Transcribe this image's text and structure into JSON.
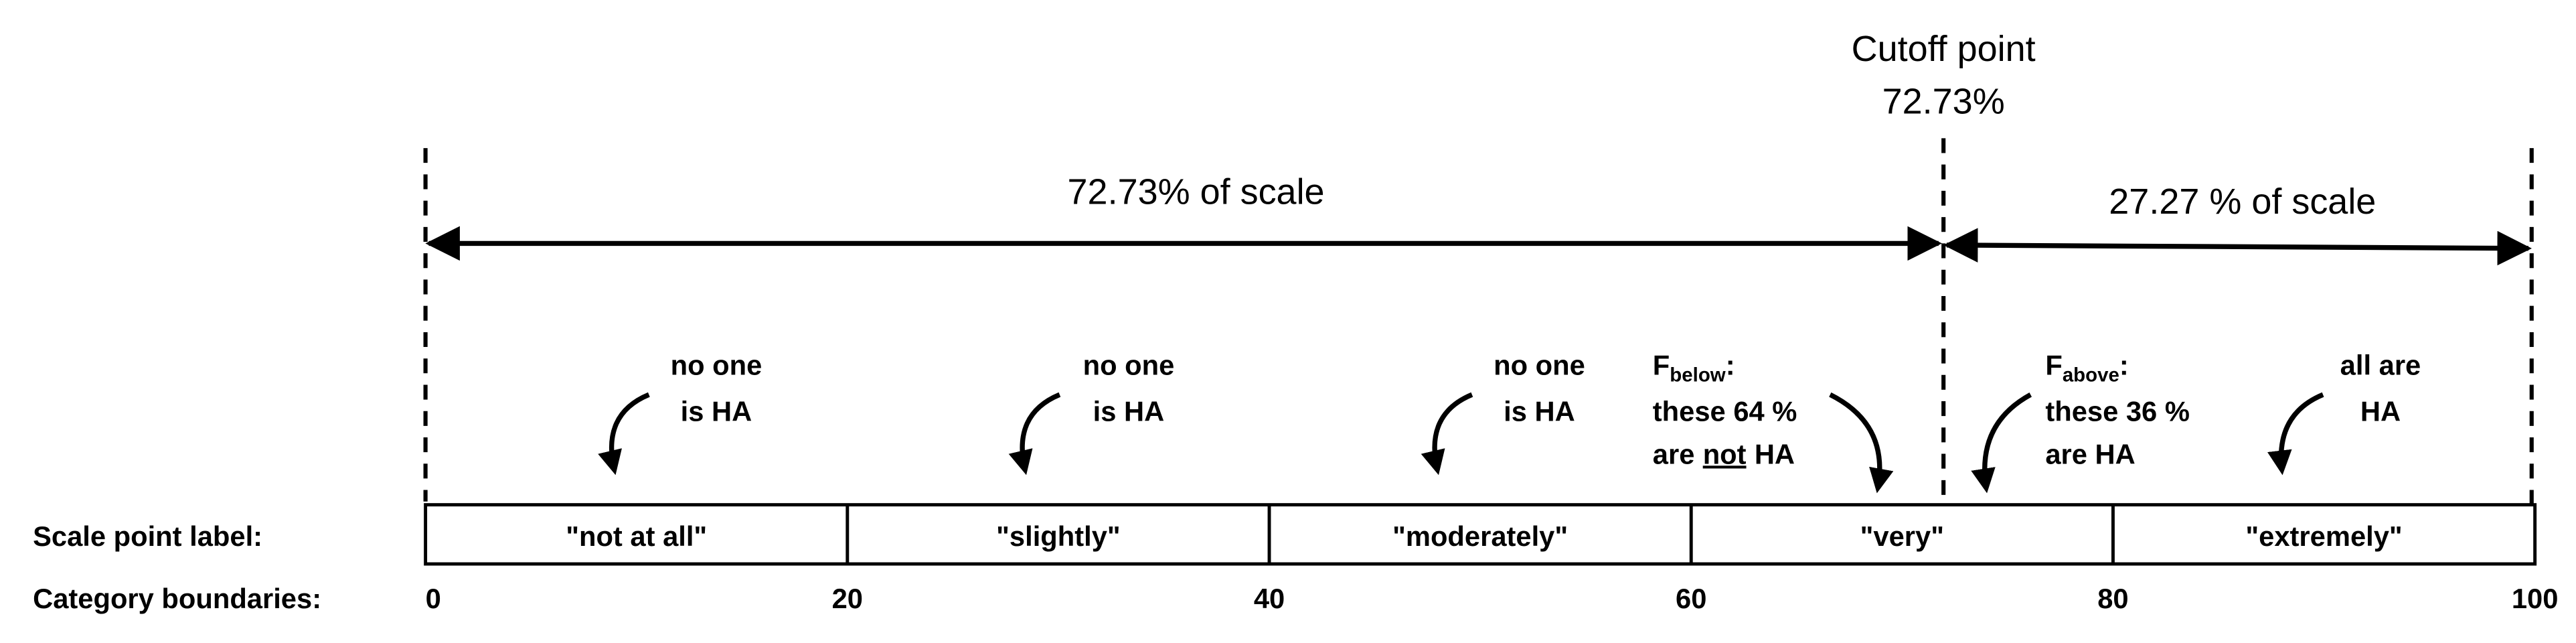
{
  "header": {
    "cutoff_title": "Cutoff point",
    "cutoff_value": "72.73%"
  },
  "spans": [
    {
      "label": "72.73% of scale"
    },
    {
      "label": "27.27 % of scale"
    }
  ],
  "annotations": [
    {
      "lines": [
        "no one",
        "is HA"
      ]
    },
    {
      "lines": [
        "no one",
        "is HA"
      ]
    },
    {
      "lines": [
        "no one",
        "is HA"
      ]
    },
    {
      "lines": [
        "all are",
        "HA"
      ]
    }
  ],
  "f_below": {
    "symbol": "F",
    "subscript": "below",
    "colon": ":",
    "line2": "these 64 %",
    "line3_pre": "are",
    "line3_emph": "not",
    "line3_post": "HA"
  },
  "f_above": {
    "symbol": "F",
    "subscript": "above",
    "colon": ":",
    "line2": "these 36 %",
    "line3": "are HA"
  },
  "row_labels": [
    "Scale point label:",
    "Category boundaries:"
  ],
  "categories": [
    "\"not at all\"",
    "\"slightly\"",
    "\"moderately\"",
    "\"very\"",
    "\"extremely\""
  ],
  "boundaries": [
    0,
    20,
    40,
    60,
    80,
    100
  ]
}
